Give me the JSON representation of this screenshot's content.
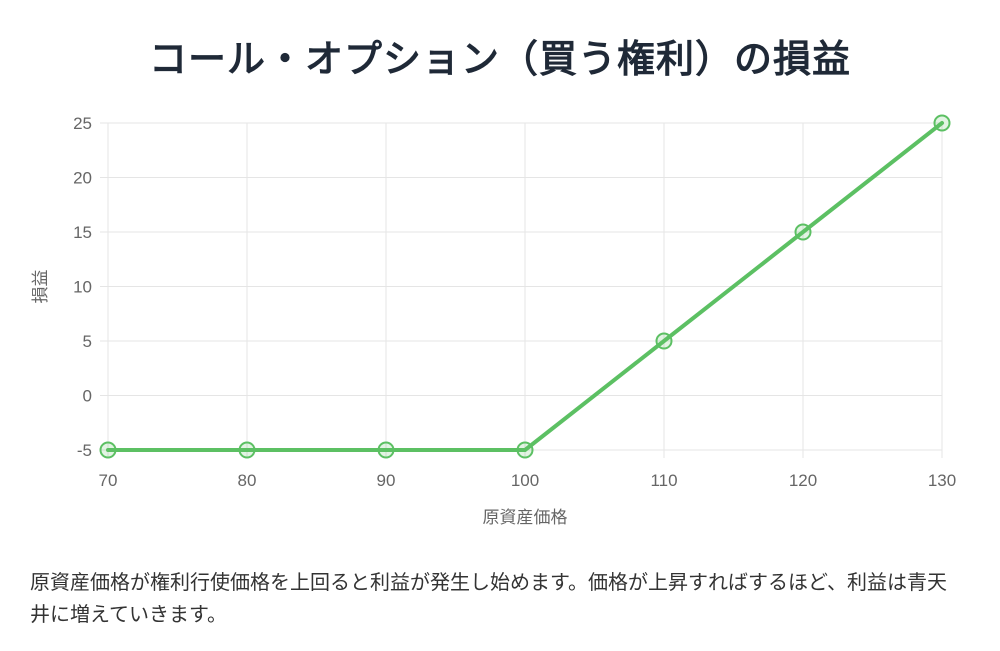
{
  "chart_data": {
    "type": "line",
    "title": "コール・オプション（買う権利）の損益",
    "xlabel": "原資産価格",
    "ylabel": "損益",
    "x": [
      70,
      80,
      90,
      100,
      110,
      120,
      130
    ],
    "series": [
      {
        "values": [
          -5,
          -5,
          -5,
          -5,
          5,
          15,
          25
        ]
      }
    ],
    "xticks": [
      "70",
      "80",
      "90",
      "100",
      "110",
      "120",
      "130"
    ],
    "yticks": [
      "-5",
      "0",
      "5",
      "10",
      "15",
      "20",
      "25"
    ],
    "xlim": [
      70,
      130
    ],
    "ylim": [
      -5,
      25
    ],
    "grid": true,
    "legend": "none",
    "colors": {
      "line": "#5cc063",
      "grid": "#e5e5e5",
      "tick": "#666666"
    }
  },
  "description": "原資産価格が権利行使価格を上回ると利益が発生し始めます。価格が上昇すればするほど、利益は青天井に増えていきます。"
}
